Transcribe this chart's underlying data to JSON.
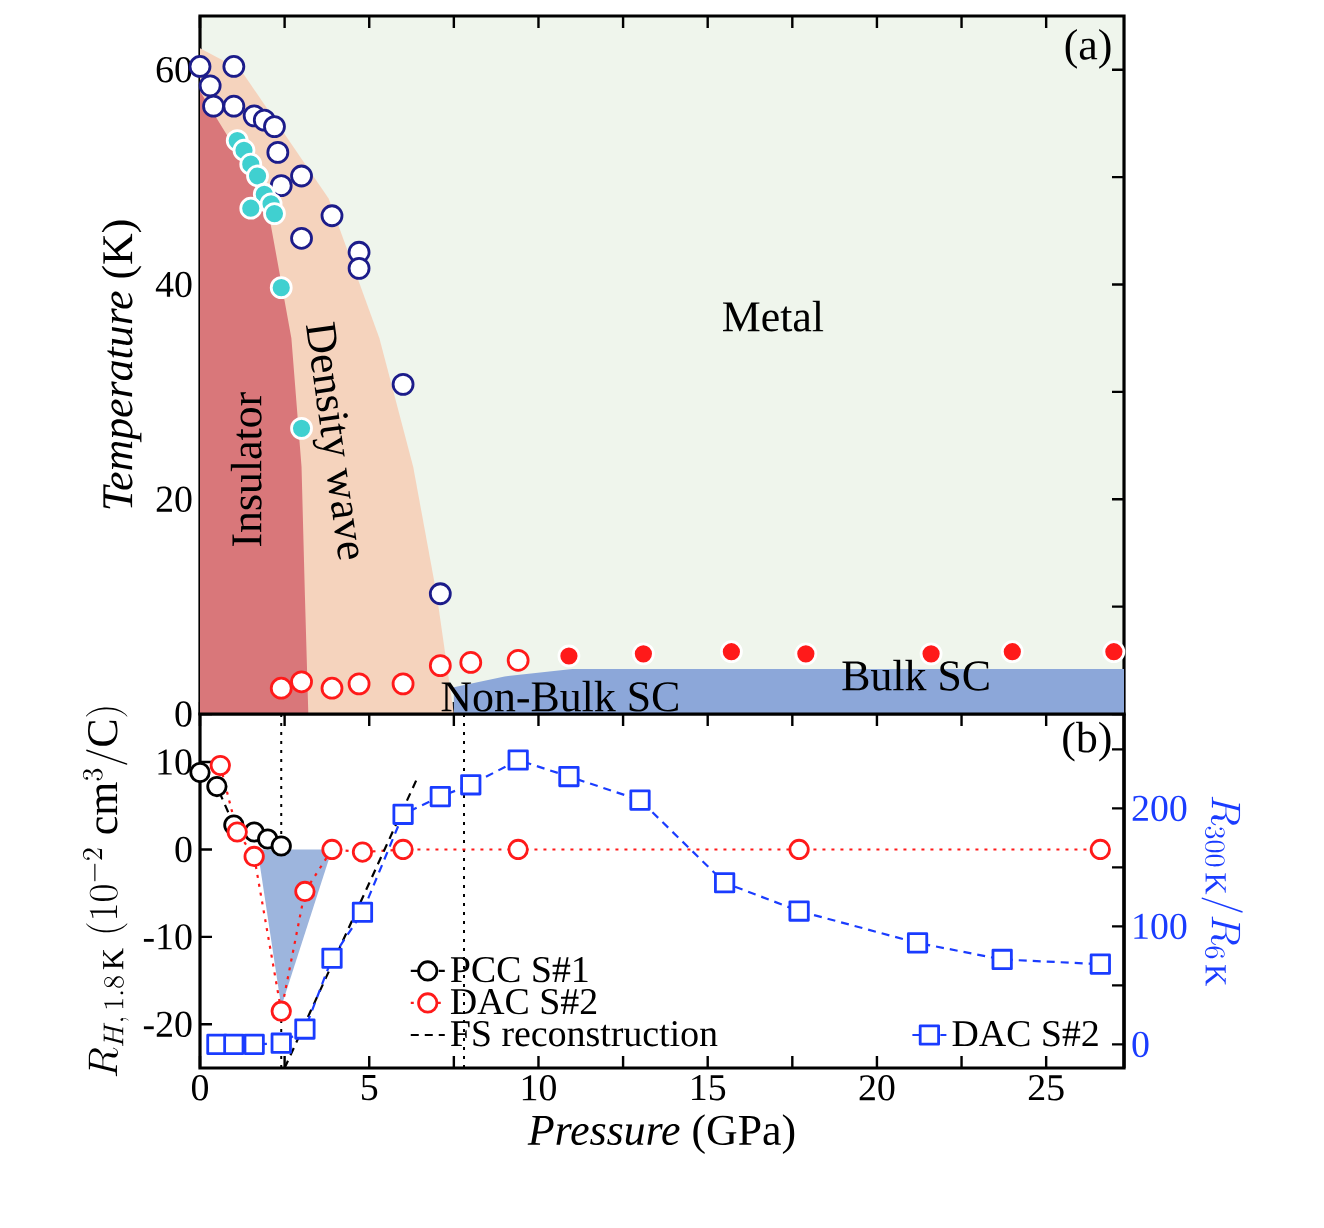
{
  "chart_data": [
    {
      "type": "scatter",
      "ylabel": "*Temperature* (K)",
      "xlim": [
        0,
        27.3
      ],
      "ylim": [
        0,
        65
      ],
      "xticks": [
        0,
        2.5,
        5,
        7.5,
        10,
        12.5,
        15,
        17.5,
        20,
        22.5,
        25
      ],
      "yticks": [
        0,
        {
          "value": 10,
          "label": null
        },
        20,
        {
          "value": 30,
          "label": null
        },
        40,
        {
          "value": 50,
          "label": null
        },
        60
      ],
      "tick_labels": "y",
      "annotations": [
        "(a)",
        "Metal",
        "Insulator",
        "Density wave",
        "Non-Bulk SC",
        "Bulk SC"
      ],
      "series": [
        {
          "type": "area",
          "color": "#8ca7d9",
          "x": [
            7.5,
            9,
            11,
            27.3
          ],
          "values": [
            2.5,
            3.5,
            4.2,
            4.2
          ]
        },
        {
          "type": "area",
          "color": "#f5d3bd",
          "x": [
            0,
            1.2,
            3.8,
            5.3,
            6.3,
            7.0,
            7.5
          ],
          "values": [
            62,
            60,
            48,
            35,
            23,
            11,
            0
          ]
        },
        {
          "type": "area",
          "color": "#d9777a",
          "x": [
            0,
            1.95,
            2.7,
            3.0,
            3.1,
            3.2
          ],
          "values": [
            58,
            48,
            35,
            23,
            11,
            0
          ]
        },
        {
          "color": "#1c1c8a",
          "marker": "circle",
          "x": [
            0,
            1.0,
            0.3,
            0.4,
            1.0,
            1.6,
            1.9,
            2.2,
            2.3,
            2.4,
            3.0,
            3.9,
            3.0,
            4.7,
            4.7,
            6.0,
            7.1
          ],
          "values": [
            60.3,
            60.3,
            58.5,
            56.6,
            56.6,
            55.7,
            55.3,
            54.7,
            52.3,
            49.2,
            50.1,
            46.4,
            44.3,
            43.0,
            41.5,
            30.7,
            11.2
          ]
        },
        {
          "color": "#40d0d0",
          "marker": "circle",
          "x": [
            1.1,
            1.3,
            1.5,
            1.7,
            1.9,
            2.1,
            2.2,
            1.5,
            2.4,
            3.0
          ],
          "values": [
            53.4,
            52.5,
            51.2,
            50.1,
            48.4,
            47.5,
            46.6,
            47.1,
            39.7,
            26.6
          ]
        },
        {
          "color": "#ff1a1a",
          "marker": "circle",
          "x": [
            2.4,
            3.0,
            3.9,
            4.7,
            6.0,
            7.1,
            8.0,
            9.4
          ],
          "values": [
            2.4,
            3.0,
            2.4,
            2.8,
            2.8,
            4.5,
            4.8,
            5.0
          ]
        },
        {
          "color": "#ff1a1a",
          "marker": "circle",
          "x": [
            10.9,
            13.1,
            15.7,
            17.9,
            21.6,
            24.0,
            27.0
          ],
          "values": [
            5.4,
            5.6,
            5.8,
            5.6,
            5.6,
            5.8,
            5.8
          ]
        }
      ]
    },
    {
      "type": "line",
      "xlabel": "*Pressure* (GPa)",
      "ylabel": "R_{H,\\,1.8\\,\\mathrm{K}}\\ (10^{-2}\\ \\mathrm{cm}^{3}/\\mathrm{C})",
      "y2label": "R_{300\\,\\mathrm{K}}/R_{6\\,\\mathrm{K}}",
      "xlim": [
        0,
        27.3
      ],
      "ylim": [
        -25,
        15.5
      ],
      "y2lim": [
        -20,
        280
      ],
      "xticks": [
        0,
        {
          "value": 2.5,
          "label": null
        },
        5,
        {
          "value": 7.5,
          "label": null
        },
        10,
        {
          "value": 12.5,
          "label": null
        },
        15,
        {
          "value": 17.5,
          "label": null
        },
        20,
        {
          "value": 22.5,
          "label": null
        },
        25
      ],
      "yticks": [
        -20,
        -10,
        0,
        10
      ],
      "y2ticks": [
        0,
        {
          "value": 50,
          "label": null
        },
        100,
        {
          "value": 150,
          "label": null
        },
        200,
        {
          "value": 250,
          "label": null
        }
      ],
      "legend": "bottom",
      "annotations": [
        "(b)"
      ],
      "ref_lines": [
        {
          "axis": "x",
          "value": 2.4,
          "color": "#000000",
          "line_style": "dotted"
        },
        {
          "axis": "x",
          "value": 7.8,
          "color": "#000000",
          "line_style": "dotted"
        }
      ],
      "series": [
        {
          "type": "area",
          "color": "#9db5dd",
          "x": [
            1.7,
            2.4,
            3.9
          ],
          "values": [
            0,
            -18,
            0
          ]
        },
        {
          "name": "PCC S#1",
          "color": "#000000",
          "marker": "circle",
          "line_style": "dashed",
          "x": [
            0,
            0.5,
            1.0,
            1.6,
            2.0,
            2.4
          ],
          "values": [
            8.8,
            7.2,
            2.8,
            2.0,
            1.2,
            0.4
          ]
        },
        {
          "name": "DAC S#2",
          "color": "#ff1a1a",
          "marker": "circle",
          "line_style": "dotted",
          "x": [
            0.6,
            1.1,
            1.6,
            2.4,
            3.1,
            3.9,
            4.8,
            6.0,
            9.4,
            17.7,
            26.6
          ],
          "values": [
            9.6,
            2,
            -0.8,
            -18.5,
            -4.8,
            0,
            -0.3,
            0,
            0,
            0,
            0
          ]
        },
        {
          "name": "FS reconstruction",
          "color": "#000000",
          "marker": "none",
          "line_style": "dashed",
          "x": [
            2.5,
            6.4
          ],
          "values": [
            -25,
            8
          ]
        },
        {
          "name": "DAC S#2",
          "color": "#1a3cff",
          "marker": "square",
          "line_style": "dashed",
          "axis": "y2",
          "x": [
            0.5,
            1.0,
            1.6,
            2.4,
            3.1,
            3.9,
            4.8,
            6.0,
            7.1,
            8.0,
            9.4,
            10.9,
            13.0,
            15.5,
            17.7,
            21.2,
            23.7,
            26.6
          ],
          "values": [
            0,
            0,
            0,
            1,
            13,
            73,
            112,
            195,
            210,
            220,
            241,
            227,
            207,
            137,
            113,
            86,
            72,
            68
          ]
        }
      ]
    }
  ]
}
